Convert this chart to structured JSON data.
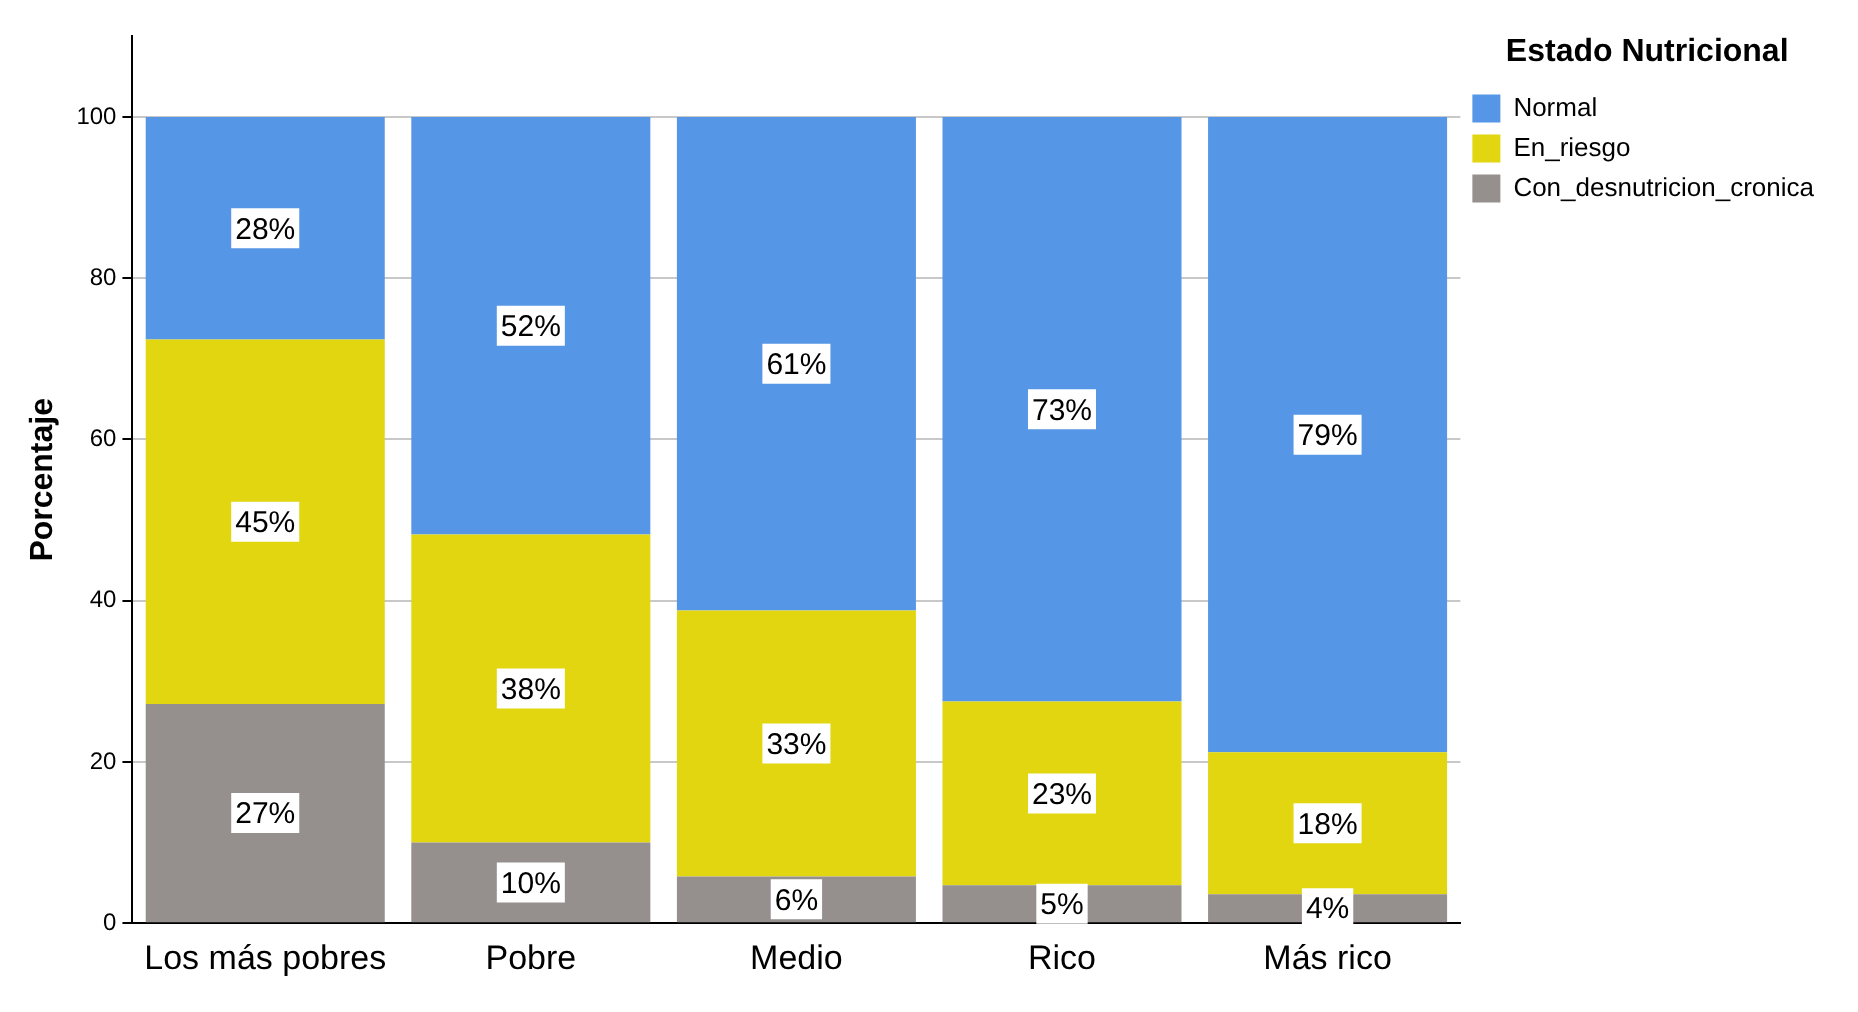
{
  "chart_data": {
    "type": "bar",
    "stacked": true,
    "ylabel": "Porcentaje",
    "legend_title": "Estado Nutricional",
    "legend": "top right",
    "grid": "y",
    "categories": [
      "Los más pobres",
      "Pobre",
      "Medio",
      "Rico",
      "Más rico"
    ],
    "ylim": [
      0,
      110
    ],
    "yticks": [
      0,
      20,
      40,
      60,
      80,
      100
    ],
    "series": [
      {
        "name": "Con_desnutricion_cronica",
        "color": "#958f8d",
        "values": [
          27.2,
          10.0,
          5.8,
          4.7,
          3.6
        ],
        "value_labels": [
          "27%",
          "10%",
          "6%",
          "5%",
          "4%"
        ]
      },
      {
        "name": "En_riesgo",
        "color": "#e1d60f",
        "values": [
          45.2,
          38.2,
          33.0,
          22.8,
          17.6
        ],
        "value_labels": [
          "45%",
          "38%",
          "33%",
          "23%",
          "18%"
        ]
      },
      {
        "name": "Normal",
        "color": "#5596e6",
        "values": [
          27.6,
          51.8,
          61.2,
          72.5,
          78.8
        ],
        "value_labels": [
          "28%",
          "52%",
          "61%",
          "73%",
          "79%"
        ]
      }
    ]
  }
}
